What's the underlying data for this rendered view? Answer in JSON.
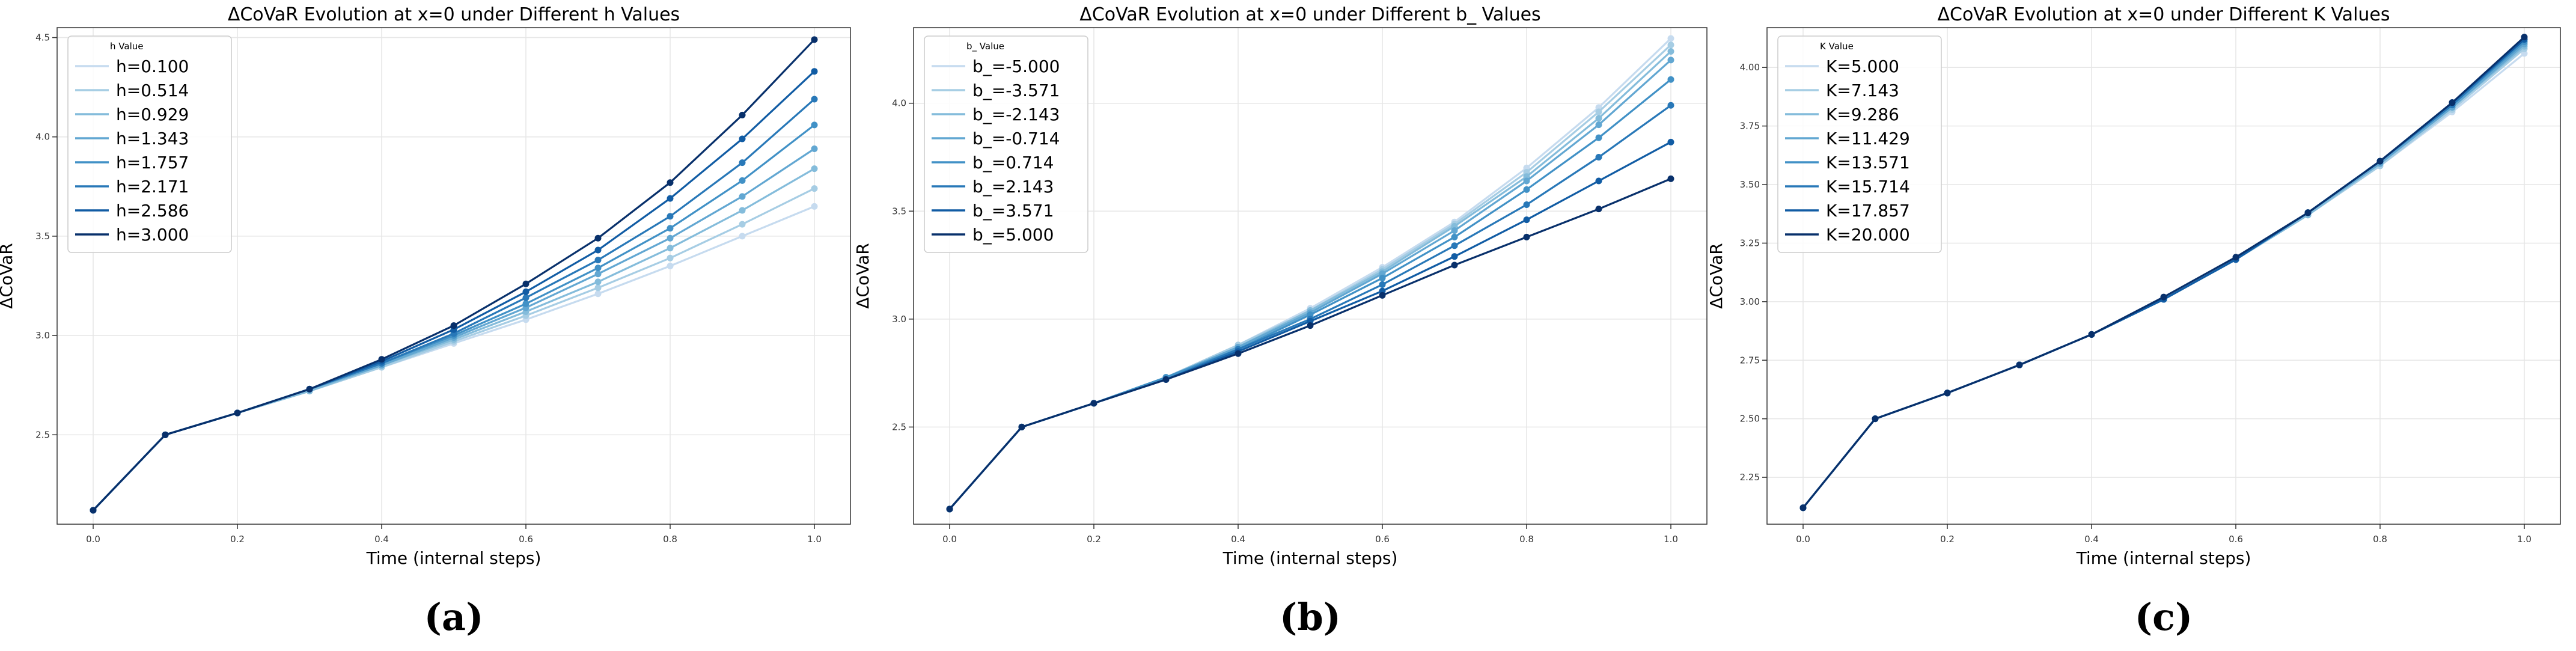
{
  "chart_data": [
    {
      "type": "line",
      "panel_label": "(a)",
      "title": "ΔCoVaR Evolution at x=0 under Different h Values",
      "xlabel": "Time (internal steps)",
      "ylabel": "ΔCoVaR",
      "xlim": [
        -0.05,
        1.05
      ],
      "ylim": [
        2.05,
        4.55
      ],
      "xticks": [
        0.0,
        0.2,
        0.4,
        0.6,
        0.8,
        1.0
      ],
      "xtick_labels": [
        "0.0",
        "0.2",
        "0.4",
        "0.6",
        "0.8",
        "1.0"
      ],
      "yticks": [
        2.5,
        3.0,
        3.5,
        4.0,
        4.5
      ],
      "ytick_labels": [
        "2.5",
        "3.0",
        "3.5",
        "4.0",
        "4.5"
      ],
      "grid": true,
      "legend_title": "h Value",
      "legend_position": "top-left",
      "x": [
        0.0,
        0.1,
        0.2,
        0.3,
        0.4,
        0.5,
        0.6,
        0.7,
        0.8,
        0.9,
        1.0
      ],
      "series": [
        {
          "name": "h=0.100",
          "color": "#c6dbef",
          "values": [
            2.12,
            2.5,
            2.61,
            2.72,
            2.84,
            2.96,
            3.08,
            3.21,
            3.35,
            3.5,
            3.65
          ]
        },
        {
          "name": "h=0.514",
          "color": "#a6cde4",
          "values": [
            2.12,
            2.5,
            2.61,
            2.72,
            2.84,
            2.97,
            3.1,
            3.24,
            3.39,
            3.56,
            3.74
          ]
        },
        {
          "name": "h=0.929",
          "color": "#84bcdb",
          "values": [
            2.12,
            2.5,
            2.61,
            2.72,
            2.85,
            2.98,
            3.12,
            3.27,
            3.44,
            3.63,
            3.84
          ]
        },
        {
          "name": "h=1.343",
          "color": "#62a7d2",
          "values": [
            2.12,
            2.5,
            2.61,
            2.73,
            2.85,
            2.99,
            3.14,
            3.31,
            3.49,
            3.7,
            3.94
          ]
        },
        {
          "name": "h=1.757",
          "color": "#4191c6",
          "values": [
            2.12,
            2.5,
            2.61,
            2.73,
            2.86,
            3.0,
            3.16,
            3.34,
            3.54,
            3.78,
            4.06
          ]
        },
        {
          "name": "h=2.171",
          "color": "#2878b8",
          "values": [
            2.12,
            2.5,
            2.61,
            2.73,
            2.86,
            3.01,
            3.19,
            3.38,
            3.6,
            3.87,
            4.19
          ]
        },
        {
          "name": "h=2.586",
          "color": "#115ca4",
          "values": [
            2.12,
            2.5,
            2.61,
            2.73,
            2.87,
            3.03,
            3.22,
            3.43,
            3.69,
            3.99,
            4.33
          ]
        },
        {
          "name": "h=3.000",
          "color": "#08306b",
          "values": [
            2.12,
            2.5,
            2.61,
            2.73,
            2.88,
            3.05,
            3.26,
            3.49,
            3.77,
            4.11,
            4.49
          ]
        }
      ]
    },
    {
      "type": "line",
      "panel_label": "(b)",
      "title": "ΔCoVaR Evolution at x=0 under Different b_ Values",
      "xlabel": "Time (internal steps)",
      "ylabel": "ΔCoVaR",
      "xlim": [
        -0.05,
        1.05
      ],
      "ylim": [
        2.05,
        4.35
      ],
      "xticks": [
        0.0,
        0.2,
        0.4,
        0.6,
        0.8,
        1.0
      ],
      "xtick_labels": [
        "0.0",
        "0.2",
        "0.4",
        "0.6",
        "0.8",
        "1.0"
      ],
      "yticks": [
        2.5,
        3.0,
        3.5,
        4.0
      ],
      "ytick_labels": [
        "2.5",
        "3.0",
        "3.5",
        "4.0"
      ],
      "grid": true,
      "legend_title": "b_ Value",
      "legend_position": "top-left",
      "x": [
        0.0,
        0.1,
        0.2,
        0.3,
        0.4,
        0.5,
        0.6,
        0.7,
        0.8,
        0.9,
        1.0
      ],
      "series": [
        {
          "name": "b_=-5.000",
          "color": "#c6dbef",
          "values": [
            2.12,
            2.5,
            2.61,
            2.73,
            2.88,
            3.05,
            3.24,
            3.45,
            3.7,
            3.98,
            4.3
          ]
        },
        {
          "name": "b_=-3.571",
          "color": "#a6cde4",
          "values": [
            2.12,
            2.5,
            2.61,
            2.73,
            2.88,
            3.04,
            3.23,
            3.44,
            3.68,
            3.96,
            4.27
          ]
        },
        {
          "name": "b_=-2.143",
          "color": "#84bcdb",
          "values": [
            2.12,
            2.5,
            2.61,
            2.73,
            2.87,
            3.04,
            3.22,
            3.43,
            3.66,
            3.93,
            4.24
          ]
        },
        {
          "name": "b_=-0.714",
          "color": "#62a7d2",
          "values": [
            2.12,
            2.5,
            2.61,
            2.73,
            2.87,
            3.03,
            3.21,
            3.41,
            3.64,
            3.9,
            4.2
          ]
        },
        {
          "name": "b_=0.714",
          "color": "#4191c6",
          "values": [
            2.12,
            2.5,
            2.61,
            2.73,
            2.86,
            3.02,
            3.19,
            3.38,
            3.6,
            3.84,
            4.11
          ]
        },
        {
          "name": "b_=2.143",
          "color": "#2878b8",
          "values": [
            2.12,
            2.5,
            2.61,
            2.72,
            2.86,
            3.0,
            3.16,
            3.34,
            3.53,
            3.75,
            3.99
          ]
        },
        {
          "name": "b_=3.571",
          "color": "#115ca4",
          "values": [
            2.12,
            2.5,
            2.61,
            2.72,
            2.85,
            2.99,
            3.13,
            3.29,
            3.46,
            3.64,
            3.82
          ]
        },
        {
          "name": "b_=5.000",
          "color": "#08306b",
          "values": [
            2.12,
            2.5,
            2.61,
            2.72,
            2.84,
            2.97,
            3.11,
            3.25,
            3.38,
            3.51,
            3.65
          ]
        }
      ]
    },
    {
      "type": "line",
      "panel_label": "(c)",
      "title": "ΔCoVaR Evolution at x=0 under Different K Values",
      "xlabel": "Time (internal steps)",
      "ylabel": "ΔCoVaR",
      "xlim": [
        -0.05,
        1.05
      ],
      "ylim": [
        2.05,
        4.17
      ],
      "xticks": [
        0.0,
        0.2,
        0.4,
        0.6,
        0.8,
        1.0
      ],
      "xtick_labels": [
        "0.0",
        "0.2",
        "0.4",
        "0.6",
        "0.8",
        "1.0"
      ],
      "yticks": [
        2.25,
        2.5,
        2.75,
        3.0,
        3.25,
        3.5,
        3.75,
        4.0
      ],
      "ytick_labels": [
        "2.25",
        "2.50",
        "2.75",
        "3.00",
        "3.25",
        "3.50",
        "3.75",
        "4.00"
      ],
      "grid": true,
      "legend_title": "K Value",
      "legend_position": "top-left",
      "x": [
        0.0,
        0.1,
        0.2,
        0.3,
        0.4,
        0.5,
        0.6,
        0.7,
        0.8,
        0.9,
        1.0
      ],
      "series": [
        {
          "name": "K=5.000",
          "color": "#c6dbef",
          "values": [
            2.12,
            2.5,
            2.61,
            2.73,
            2.86,
            3.01,
            3.18,
            3.37,
            3.58,
            3.81,
            4.06
          ]
        },
        {
          "name": "K=7.143",
          "color": "#a6cde4",
          "values": [
            2.12,
            2.5,
            2.61,
            2.73,
            2.86,
            3.01,
            3.18,
            3.37,
            3.58,
            3.82,
            4.08
          ]
        },
        {
          "name": "K=9.286",
          "color": "#84bcdb",
          "values": [
            2.12,
            2.5,
            2.61,
            2.73,
            2.86,
            3.01,
            3.18,
            3.37,
            3.59,
            3.83,
            4.09
          ]
        },
        {
          "name": "K=11.429",
          "color": "#62a7d2",
          "values": [
            2.12,
            2.5,
            2.61,
            2.73,
            2.86,
            3.01,
            3.18,
            3.38,
            3.59,
            3.83,
            4.1
          ]
        },
        {
          "name": "K=13.571",
          "color": "#4191c6",
          "values": [
            2.12,
            2.5,
            2.61,
            2.73,
            2.86,
            3.01,
            3.18,
            3.38,
            3.6,
            3.84,
            4.11
          ]
        },
        {
          "name": "K=15.714",
          "color": "#2878b8",
          "values": [
            2.12,
            2.5,
            2.61,
            2.73,
            2.86,
            3.01,
            3.18,
            3.38,
            3.6,
            3.84,
            4.12
          ]
        },
        {
          "name": "K=17.857",
          "color": "#115ca4",
          "values": [
            2.12,
            2.5,
            2.61,
            2.73,
            2.86,
            3.01,
            3.18,
            3.38,
            3.6,
            3.85,
            4.12
          ]
        },
        {
          "name": "K=20.000",
          "color": "#08306b",
          "values": [
            2.12,
            2.5,
            2.61,
            2.73,
            2.86,
            3.02,
            3.19,
            3.38,
            3.6,
            3.85,
            4.13
          ]
        }
      ]
    }
  ]
}
